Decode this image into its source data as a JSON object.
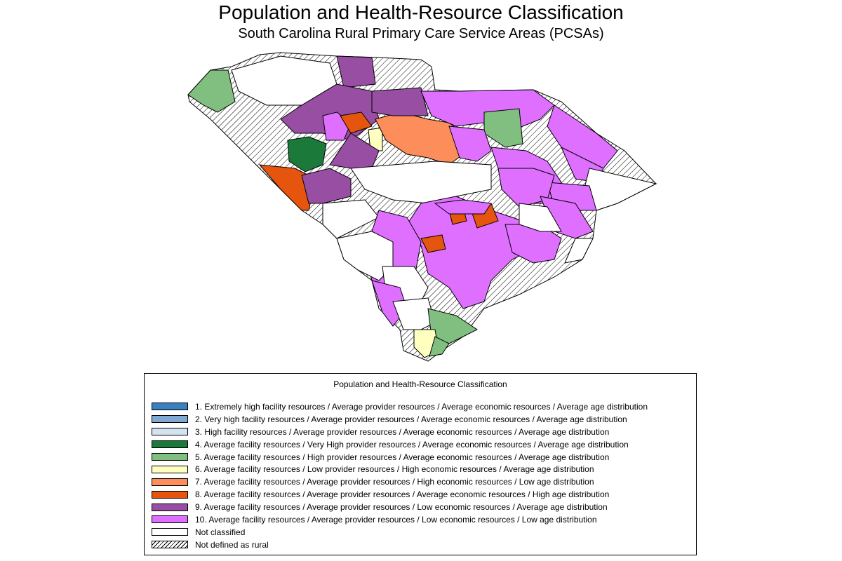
{
  "title": "Population and Health-Resource Classification",
  "subtitle": "South Carolina Rural Primary Care Service Areas (PCSAs)",
  "legend": {
    "title": "Population and Health-Resource Classification",
    "items": [
      {
        "label": "1. Extremely high facility resources / Average provider resources / Average economic resources / Average age distribution",
        "color": "#3a7fbf"
      },
      {
        "label": "2. Very high facility resources / Average provider resources / Average economic resources / Average age distribution",
        "color": "#7fa8d2"
      },
      {
        "label": "3. High facility resources / Average provider resources / Average economic resources / Average age distribution",
        "color": "#d3e3ef"
      },
      {
        "label": "4. Average facility resources / Very High provider resources / Average economic resources / Average age distribution",
        "color": "#1b7a3a"
      },
      {
        "label": "5. Average facility resources / High provider resources / Average economic resources / Average age distribution",
        "color": "#80bf80"
      },
      {
        "label": "6. Average facility resources / Low provider resources / High economic resources / Average age distribution",
        "color": "#ffffc0"
      },
      {
        "label": "7. Average facility resources / Average provider resources / High economic resources / Low age distribution",
        "color": "#fd8d5a"
      },
      {
        "label": "8. Average facility resources / Average provider resources / Average economic resources / High age distribution",
        "color": "#e6550d"
      },
      {
        "label": "9. Average facility resources / Average provider resources / Low economic resources / Average age distribution",
        "color": "#984ea3"
      },
      {
        "label": "10. Average facility resources / Average provider resources / Low economic resources / Low age distribution",
        "color": "#df70ff"
      },
      {
        "label": "Not classified",
        "color": "#ffffff"
      },
      {
        "label": "Not defined as rural",
        "color": "hatch"
      }
    ]
  }
}
